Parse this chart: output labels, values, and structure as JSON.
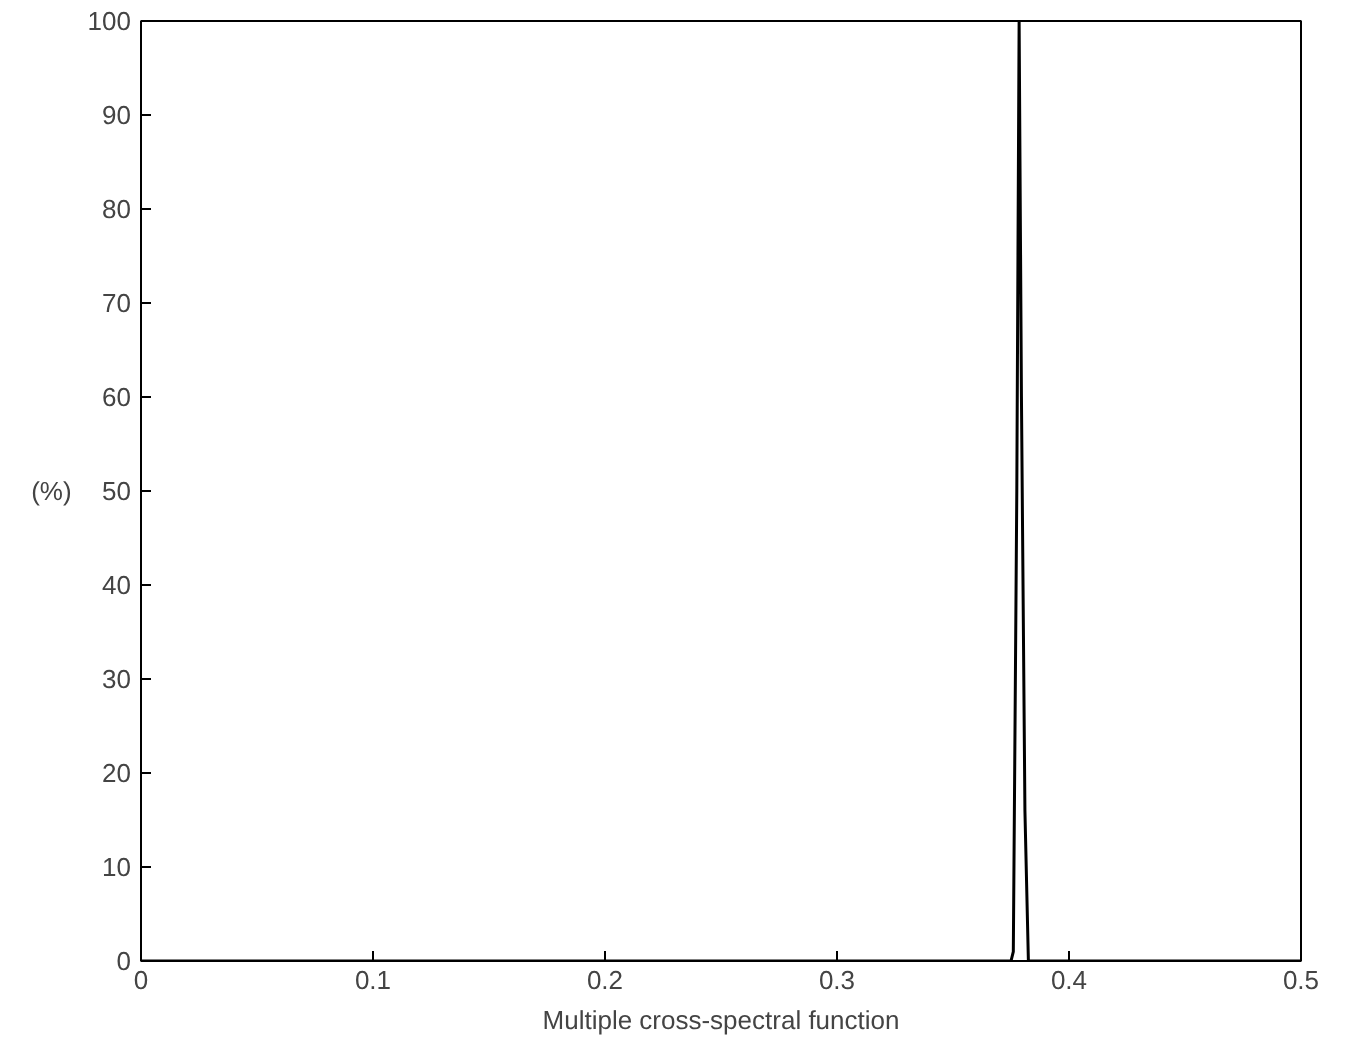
{
  "chart_data": {
    "type": "line",
    "xlabel": "Multiple cross-spectral function",
    "ylabel": "(%)",
    "x": [
      0,
      0.375,
      0.376,
      0.3775,
      0.3785,
      0.3795,
      0.381,
      0.3825,
      0.5
    ],
    "series": [
      {
        "color": "#000000",
        "values": [
          0,
          0,
          1,
          50,
          100,
          60,
          16,
          0,
          0
        ]
      }
    ],
    "xlim": [
      0,
      0.5
    ],
    "xticks": [
      0,
      0.1,
      0.2,
      0.3,
      0.4,
      0.5
    ],
    "ylim": [
      0,
      100
    ],
    "yticks": [
      0,
      10,
      20,
      30,
      40,
      50,
      60,
      70,
      80,
      90,
      100
    ],
    "grid": false
  }
}
